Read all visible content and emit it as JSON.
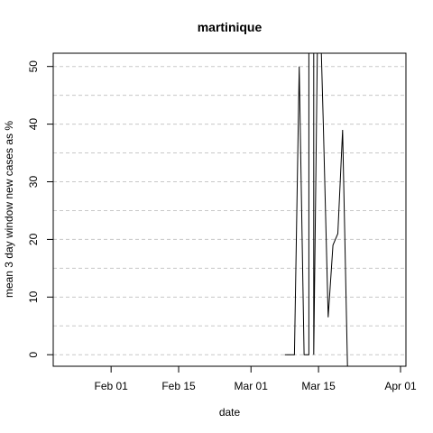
{
  "chart_data": {
    "type": "line",
    "title": "martinique",
    "xlabel": "date",
    "ylabel": "mean  3  day window new cases as %",
    "x_ticks": [
      {
        "date": "2020-02-01",
        "label": "Feb 01"
      },
      {
        "date": "2020-02-15",
        "label": "Feb 15"
      },
      {
        "date": "2020-03-01",
        "label": "Mar 01"
      },
      {
        "date": "2020-03-15",
        "label": "Mar 15"
      },
      {
        "date": "2020-04-01",
        "label": "Apr 01"
      }
    ],
    "y_ticks": [
      0,
      10,
      20,
      30,
      40,
      50
    ],
    "xlim": [
      "2020-01-20",
      "2020-04-01"
    ],
    "ylim": [
      -2,
      52.3
    ],
    "grid": "horizontal dashed",
    "series": [
      {
        "x": [
          "2020-03-08",
          "2020-03-10",
          "2020-03-11",
          "2020-03-12",
          "2020-03-12",
          "2020-03-13",
          "2020-03-13",
          "2020-03-14",
          "2020-03-14",
          "2020-03-15",
          "2020-03-16",
          "2020-03-17",
          "2020-03-18",
          "2020-03-19",
          "2020-03-20",
          "2020-03-21"
        ],
        "y": [
          0,
          0,
          50,
          0,
          0,
          0,
          70,
          70,
          0,
          70,
          40,
          6.5,
          19,
          21,
          39,
          -2
        ]
      }
    ]
  }
}
